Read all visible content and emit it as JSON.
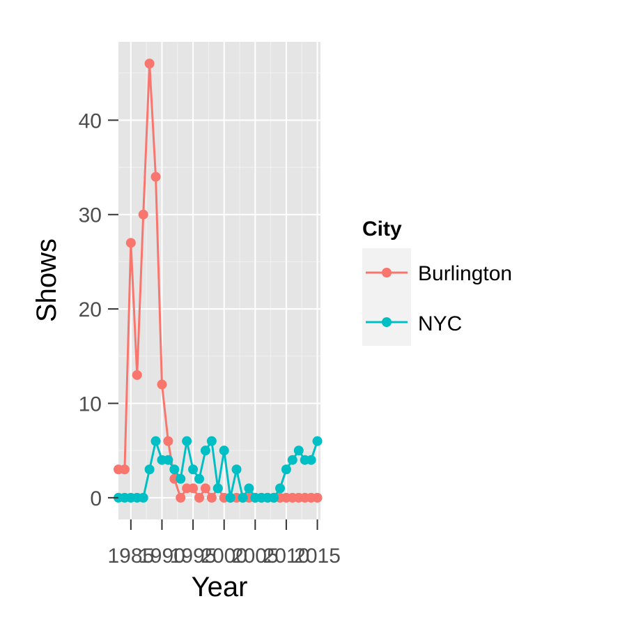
{
  "chart_data": {
    "type": "line",
    "title": "",
    "xlabel": "Year",
    "ylabel": "Shows",
    "xlim": [
      1983,
      2015.5
    ],
    "ylim": [
      -2.3,
      48.3
    ],
    "x_ticks": [
      1985,
      1990,
      1995,
      2000,
      2005,
      2010,
      2015
    ],
    "x_tick_labels": [
      "1985",
      "1990",
      "1995",
      "2000",
      "2005",
      "2010",
      "2015"
    ],
    "y_ticks": [
      0,
      10,
      20,
      30,
      40
    ],
    "y_tick_labels": [
      "0",
      "10",
      "20",
      "30",
      "40"
    ],
    "grid": true,
    "legend": {
      "title": "City",
      "position": "right"
    },
    "x": [
      1983,
      1984,
      1985,
      1986,
      1987,
      1988,
      1989,
      1990,
      1991,
      1992,
      1993,
      1994,
      1995,
      1996,
      1997,
      1998,
      1999,
      2000,
      2001,
      2002,
      2003,
      2004,
      2005,
      2006,
      2007,
      2008,
      2009,
      2010,
      2011,
      2012,
      2013,
      2014,
      2015
    ],
    "series": [
      {
        "name": "Burlington",
        "color": "#F8766D",
        "values": [
          3,
          3,
          27,
          13,
          30,
          46,
          34,
          12,
          6,
          2,
          0,
          1,
          1,
          0,
          1,
          0,
          1,
          0,
          0,
          0,
          0,
          0,
          0,
          0,
          0,
          0,
          0,
          0,
          0,
          0,
          0,
          0,
          0
        ]
      },
      {
        "name": "NYC",
        "color": "#00BFC4",
        "values": [
          0,
          0,
          0,
          0,
          0,
          3,
          6,
          4,
          4,
          3,
          2,
          6,
          3,
          2,
          5,
          6,
          1,
          5,
          0,
          3,
          0,
          1,
          0,
          0,
          0,
          0,
          1,
          3,
          4,
          5,
          4,
          4,
          6
        ]
      }
    ]
  }
}
